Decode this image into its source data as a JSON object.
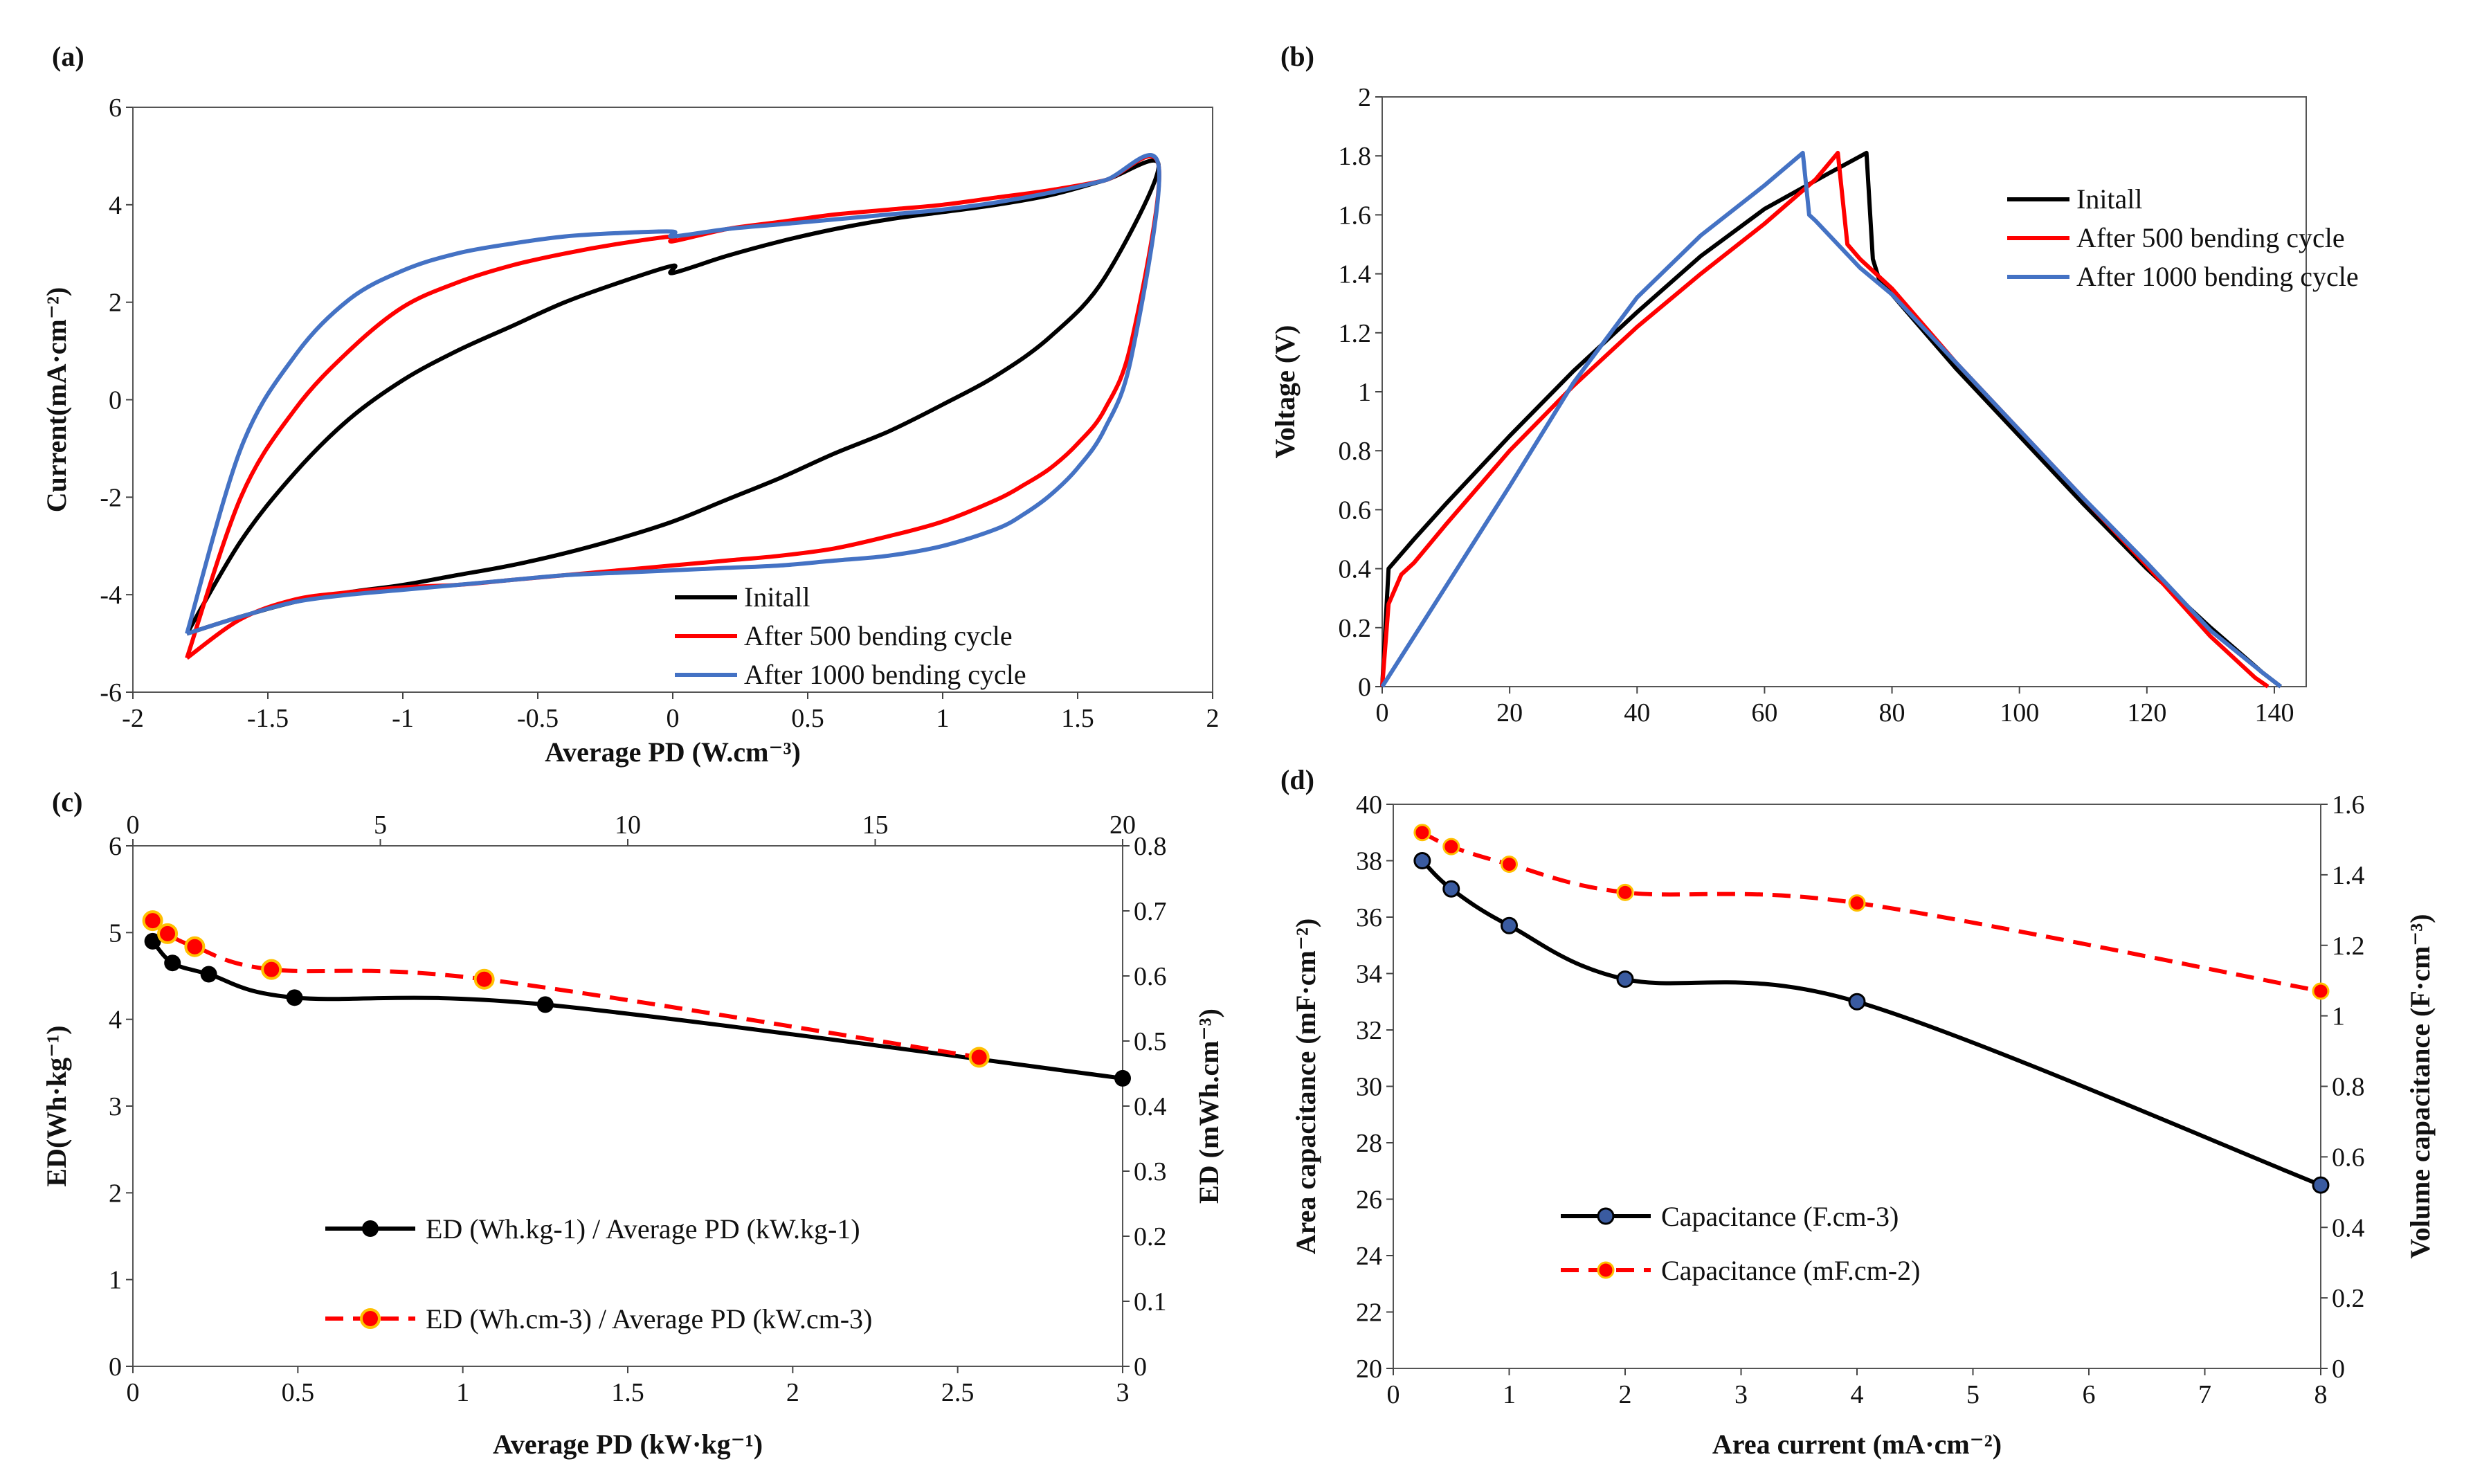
{
  "chart_data": [
    {
      "panel": "(a)",
      "type": "line",
      "xlabel": "Average PD (W.cm⁻³)",
      "ylabel": "Current(mA·cm⁻²)",
      "xlim": [
        -2,
        2
      ],
      "ylim": [
        -6,
        6
      ],
      "xticks": [
        "-2",
        "-1.5",
        "-1",
        "-0.5",
        "0",
        "0.5",
        "1",
        "1.5",
        "2"
      ],
      "yticks": [
        "-6",
        "-4",
        "-2",
        "0",
        "2",
        "4",
        "6"
      ],
      "legend_position": "bottom-right",
      "series": [
        {
          "name": "Initall",
          "color": "#000000",
          "x": [
            -1.8,
            -1.6,
            -1.4,
            -1.2,
            -1.0,
            -0.8,
            -0.6,
            -0.4,
            -0.2,
            0.0,
            0.0,
            0.2,
            0.4,
            0.6,
            0.8,
            1.0,
            1.2,
            1.4,
            1.6,
            1.8,
            1.6,
            1.4,
            1.2,
            1.0,
            0.8,
            0.6,
            0.4,
            0.2,
            0.0,
            -0.2,
            -0.4,
            -0.6,
            -0.8,
            -1.0,
            -1.2,
            -1.4,
            -1.6,
            -1.8
          ],
          "y": [
            -4.8,
            -2.9,
            -1.5,
            -0.4,
            0.4,
            1.0,
            1.5,
            2.0,
            2.4,
            2.75,
            2.6,
            2.95,
            3.25,
            3.5,
            3.7,
            3.85,
            4.0,
            4.2,
            4.5,
            4.8,
            2.5,
            1.3,
            0.5,
            -0.1,
            -0.65,
            -1.1,
            -1.6,
            -2.05,
            -2.5,
            -2.85,
            -3.15,
            -3.4,
            -3.6,
            -3.8,
            -3.95,
            -4.15,
            -4.45,
            -4.8
          ]
        },
        {
          "name": "After 500 bending cycle",
          "color": "#ff0000",
          "x": [
            -1.8,
            -1.6,
            -1.4,
            -1.2,
            -1.0,
            -0.8,
            -0.6,
            -0.4,
            -0.2,
            0.0,
            0.0,
            0.2,
            0.4,
            0.6,
            0.8,
            1.0,
            1.2,
            1.4,
            1.6,
            1.8,
            1.7,
            1.6,
            1.5,
            1.4,
            1.3,
            1.2,
            1.0,
            0.8,
            0.6,
            0.4,
            0.2,
            0.0,
            -0.2,
            -0.4,
            -0.6,
            -0.8,
            -1.0,
            -1.2,
            -1.4,
            -1.6,
            -1.8
          ],
          "y": [
            -5.3,
            -2.0,
            -0.2,
            1.0,
            1.9,
            2.4,
            2.75,
            3.0,
            3.2,
            3.35,
            3.25,
            3.5,
            3.65,
            3.8,
            3.9,
            4.0,
            4.15,
            4.3,
            4.5,
            4.8,
            1.2,
            -0.2,
            -0.9,
            -1.4,
            -1.75,
            -2.05,
            -2.5,
            -2.8,
            -3.05,
            -3.2,
            -3.3,
            -3.4,
            -3.5,
            -3.6,
            -3.7,
            -3.8,
            -3.85,
            -3.95,
            -4.1,
            -4.5,
            -5.3
          ]
        },
        {
          "name": "After 1000 bending cycle",
          "color": "#4472c4",
          "x": [
            -1.8,
            -1.6,
            -1.4,
            -1.2,
            -1.0,
            -0.8,
            -0.6,
            -0.4,
            -0.2,
            0.0,
            0.0,
            0.2,
            0.4,
            0.6,
            0.8,
            1.0,
            1.2,
            1.4,
            1.6,
            1.8,
            1.7,
            1.6,
            1.5,
            1.4,
            1.3,
            1.2,
            1.0,
            0.8,
            0.6,
            0.4,
            0.2,
            0.0,
            -0.2,
            -0.4,
            -0.6,
            -0.8,
            -1.0,
            -1.2,
            -1.4,
            -1.6,
            -1.8
          ],
          "y": [
            -4.8,
            -1.0,
            0.9,
            2.05,
            2.65,
            3.0,
            3.2,
            3.35,
            3.42,
            3.45,
            3.35,
            3.5,
            3.6,
            3.7,
            3.8,
            3.9,
            4.05,
            4.25,
            4.5,
            4.8,
            0.9,
            -0.6,
            -1.4,
            -1.95,
            -2.35,
            -2.65,
            -3.0,
            -3.2,
            -3.3,
            -3.4,
            -3.45,
            -3.5,
            -3.55,
            -3.6,
            -3.7,
            -3.8,
            -3.9,
            -4.0,
            -4.15,
            -4.45,
            -4.8
          ]
        }
      ]
    },
    {
      "panel": "(b)",
      "type": "line",
      "xlabel": "",
      "ylabel": "Voltage (V)",
      "xlim": [
        0,
        145
      ],
      "ylim": [
        0,
        2
      ],
      "xticks": [
        "0",
        "20",
        "40",
        "60",
        "80",
        "100",
        "120",
        "140"
      ],
      "yticks": [
        "0",
        "0.2",
        "0.4",
        "0.6",
        "0.8",
        "1",
        "1.2",
        "1.4",
        "1.6",
        "1.8",
        "2"
      ],
      "legend_position": "top-right",
      "series": [
        {
          "name": "Initall",
          "color": "#000000",
          "x": [
            0,
            1,
            5,
            10,
            20,
            30,
            40,
            50,
            60,
            70,
            76,
            77,
            78,
            90,
            100,
            110,
            120,
            130,
            138,
            141
          ],
          "y": [
            0,
            0.4,
            0.5,
            0.62,
            0.85,
            1.07,
            1.27,
            1.46,
            1.62,
            1.74,
            1.81,
            1.45,
            1.38,
            1.08,
            0.85,
            0.62,
            0.4,
            0.2,
            0.05,
            0
          ]
        },
        {
          "name": "After 500 bending cycle",
          "color": "#ff0000",
          "x": [
            0,
            1,
            3,
            5,
            10,
            20,
            30,
            40,
            50,
            60,
            68,
            71.5,
            73,
            75,
            80,
            90,
            100,
            110,
            120,
            130,
            137,
            139
          ],
          "y": [
            0,
            0.28,
            0.38,
            0.42,
            0.55,
            0.8,
            1.02,
            1.22,
            1.4,
            1.57,
            1.72,
            1.81,
            1.5,
            1.45,
            1.35,
            1.1,
            0.87,
            0.64,
            0.41,
            0.17,
            0.03,
            0
          ]
        },
        {
          "name": "After 1000 bending cycle",
          "color": "#4472c4",
          "x": [
            0,
            10,
            20,
            30,
            40,
            50,
            60,
            66,
            67,
            68,
            75,
            80,
            90,
            100,
            110,
            120,
            130,
            138,
            141
          ],
          "y": [
            0,
            0.34,
            0.68,
            1.03,
            1.32,
            1.53,
            1.7,
            1.81,
            1.6,
            1.58,
            1.42,
            1.33,
            1.1,
            0.87,
            0.64,
            0.42,
            0.19,
            0.05,
            0
          ]
        }
      ]
    },
    {
      "panel": "(c)",
      "type": "line",
      "xlabel": "Average PD (kW·kg⁻¹)",
      "ylabel": "ED(Wh·kg⁻¹)",
      "ylabel_right": "ED (mWh.cm⁻³)",
      "xlim": [
        0,
        3
      ],
      "ylim": [
        0,
        6
      ],
      "x2lim": [
        0,
        20
      ],
      "y2lim": [
        0,
        0.8
      ],
      "xticks": [
        "0",
        "0.5",
        "1",
        "1.5",
        "2",
        "2.5",
        "3"
      ],
      "yticks": [
        "0",
        "1",
        "2",
        "3",
        "4",
        "5",
        "6"
      ],
      "x2ticks": [
        "0",
        "5",
        "10",
        "15",
        "20"
      ],
      "y2ticks": [
        "0",
        "0.1",
        "0.2",
        "0.3",
        "0.4",
        "0.5",
        "0.6",
        "0.7",
        "0.8"
      ],
      "legend_position": "bottom-center",
      "series": [
        {
          "name": "ED (Wh.kg-1) / Average PD (kW.kg-1)",
          "color": "#000000",
          "style": "solid",
          "axes": "bottom-left",
          "x": [
            0.06,
            0.12,
            0.23,
            0.49,
            1.25,
            3.0
          ],
          "y": [
            4.9,
            4.65,
            4.52,
            4.25,
            4.17,
            3.32
          ]
        },
        {
          "name": "ED (Wh.cm-3) / Average PD (kW.cm-3)",
          "color": "#ff0000",
          "style": "dashed",
          "axes": "top-right",
          "x": [
            0.4,
            0.7,
            1.25,
            2.8,
            7.1,
            17.1
          ],
          "y": [
            0.685,
            0.665,
            0.645,
            0.61,
            0.595,
            0.475
          ]
        }
      ]
    },
    {
      "panel": "(d)",
      "type": "line",
      "xlabel": "Area current (mA·cm⁻²)",
      "ylabel": "Area capacitance (mF·cm⁻²)",
      "ylabel_right": "Volume capacitance (F·cm⁻³)",
      "xlim": [
        0,
        8
      ],
      "ylim": [
        20,
        40
      ],
      "y2lim": [
        0,
        1.6
      ],
      "xticks": [
        "0",
        "1",
        "2",
        "3",
        "4",
        "5",
        "6",
        "7",
        "8"
      ],
      "yticks": [
        "20",
        "22",
        "24",
        "26",
        "28",
        "30",
        "32",
        "34",
        "36",
        "38",
        "40"
      ],
      "y2ticks": [
        "0",
        "0.2",
        "0.4",
        "0.6",
        "0.8",
        "1",
        "1.2",
        "1.4",
        "1.6"
      ],
      "legend_position": "bottom-left",
      "series": [
        {
          "name": "Capacitance (F.cm-3)",
          "color": "#000000",
          "marker_fill": "#3a5ba0",
          "style": "solid",
          "axes": "left",
          "x": [
            0.25,
            0.5,
            1,
            2,
            4,
            8
          ],
          "y": [
            38,
            37,
            35.7,
            33.8,
            33,
            26.5
          ]
        },
        {
          "name": "Capacitance (mF.cm-2)",
          "color": "#ff0000",
          "style": "dashed",
          "axes": "right",
          "x": [
            0.25,
            0.5,
            1,
            2,
            4,
            8
          ],
          "y": [
            1.52,
            1.48,
            1.43,
            1.35,
            1.32,
            1.07
          ]
        }
      ]
    }
  ]
}
